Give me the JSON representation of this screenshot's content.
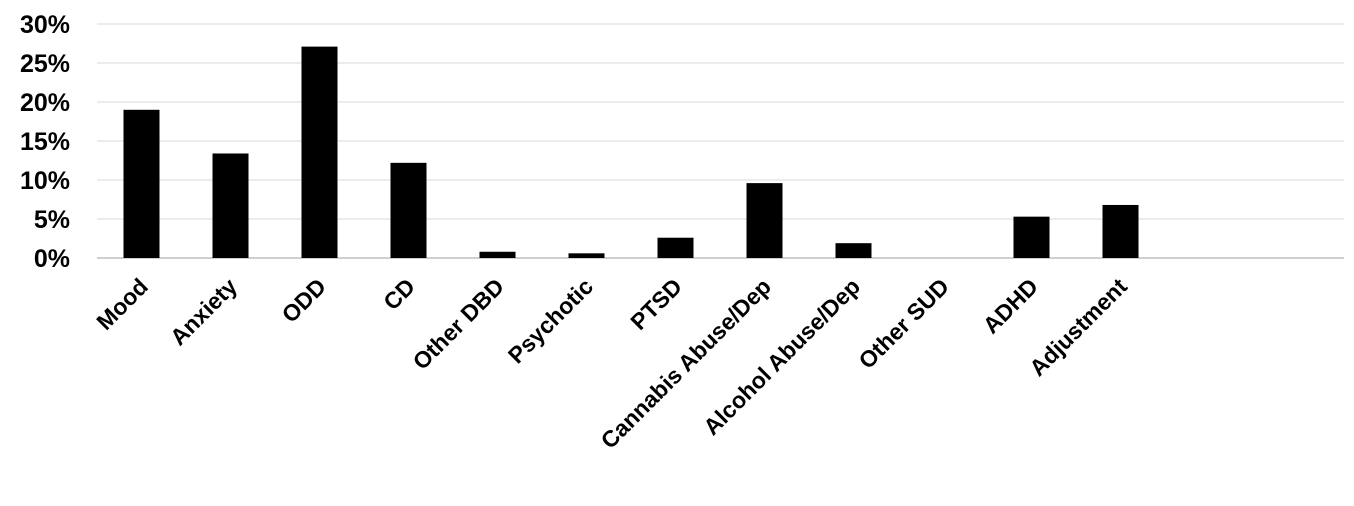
{
  "chart_data": {
    "type": "bar",
    "title": "",
    "xlabel": "",
    "ylabel": "",
    "categories": [
      "Mood",
      "Anxiety",
      "ODD",
      "CD",
      "Other DBD",
      "Psychotic",
      "PTSD",
      "Cannabis Abuse/Dep",
      "Alcohol Abuse/Dep",
      "Other SUD",
      "ADHD",
      "Adjustment"
    ],
    "values": [
      19,
      13.4,
      27.1,
      12.2,
      0.8,
      0.6,
      2.6,
      9.6,
      1.9,
      0,
      5.3,
      6.8
    ],
    "ylim": [
      0,
      30
    ],
    "yticks": [
      "0%",
      "5%",
      "10%",
      "15%",
      "20%",
      "25%",
      "30%"
    ],
    "grid": true,
    "legend": "none",
    "bar_color": "#000000"
  }
}
